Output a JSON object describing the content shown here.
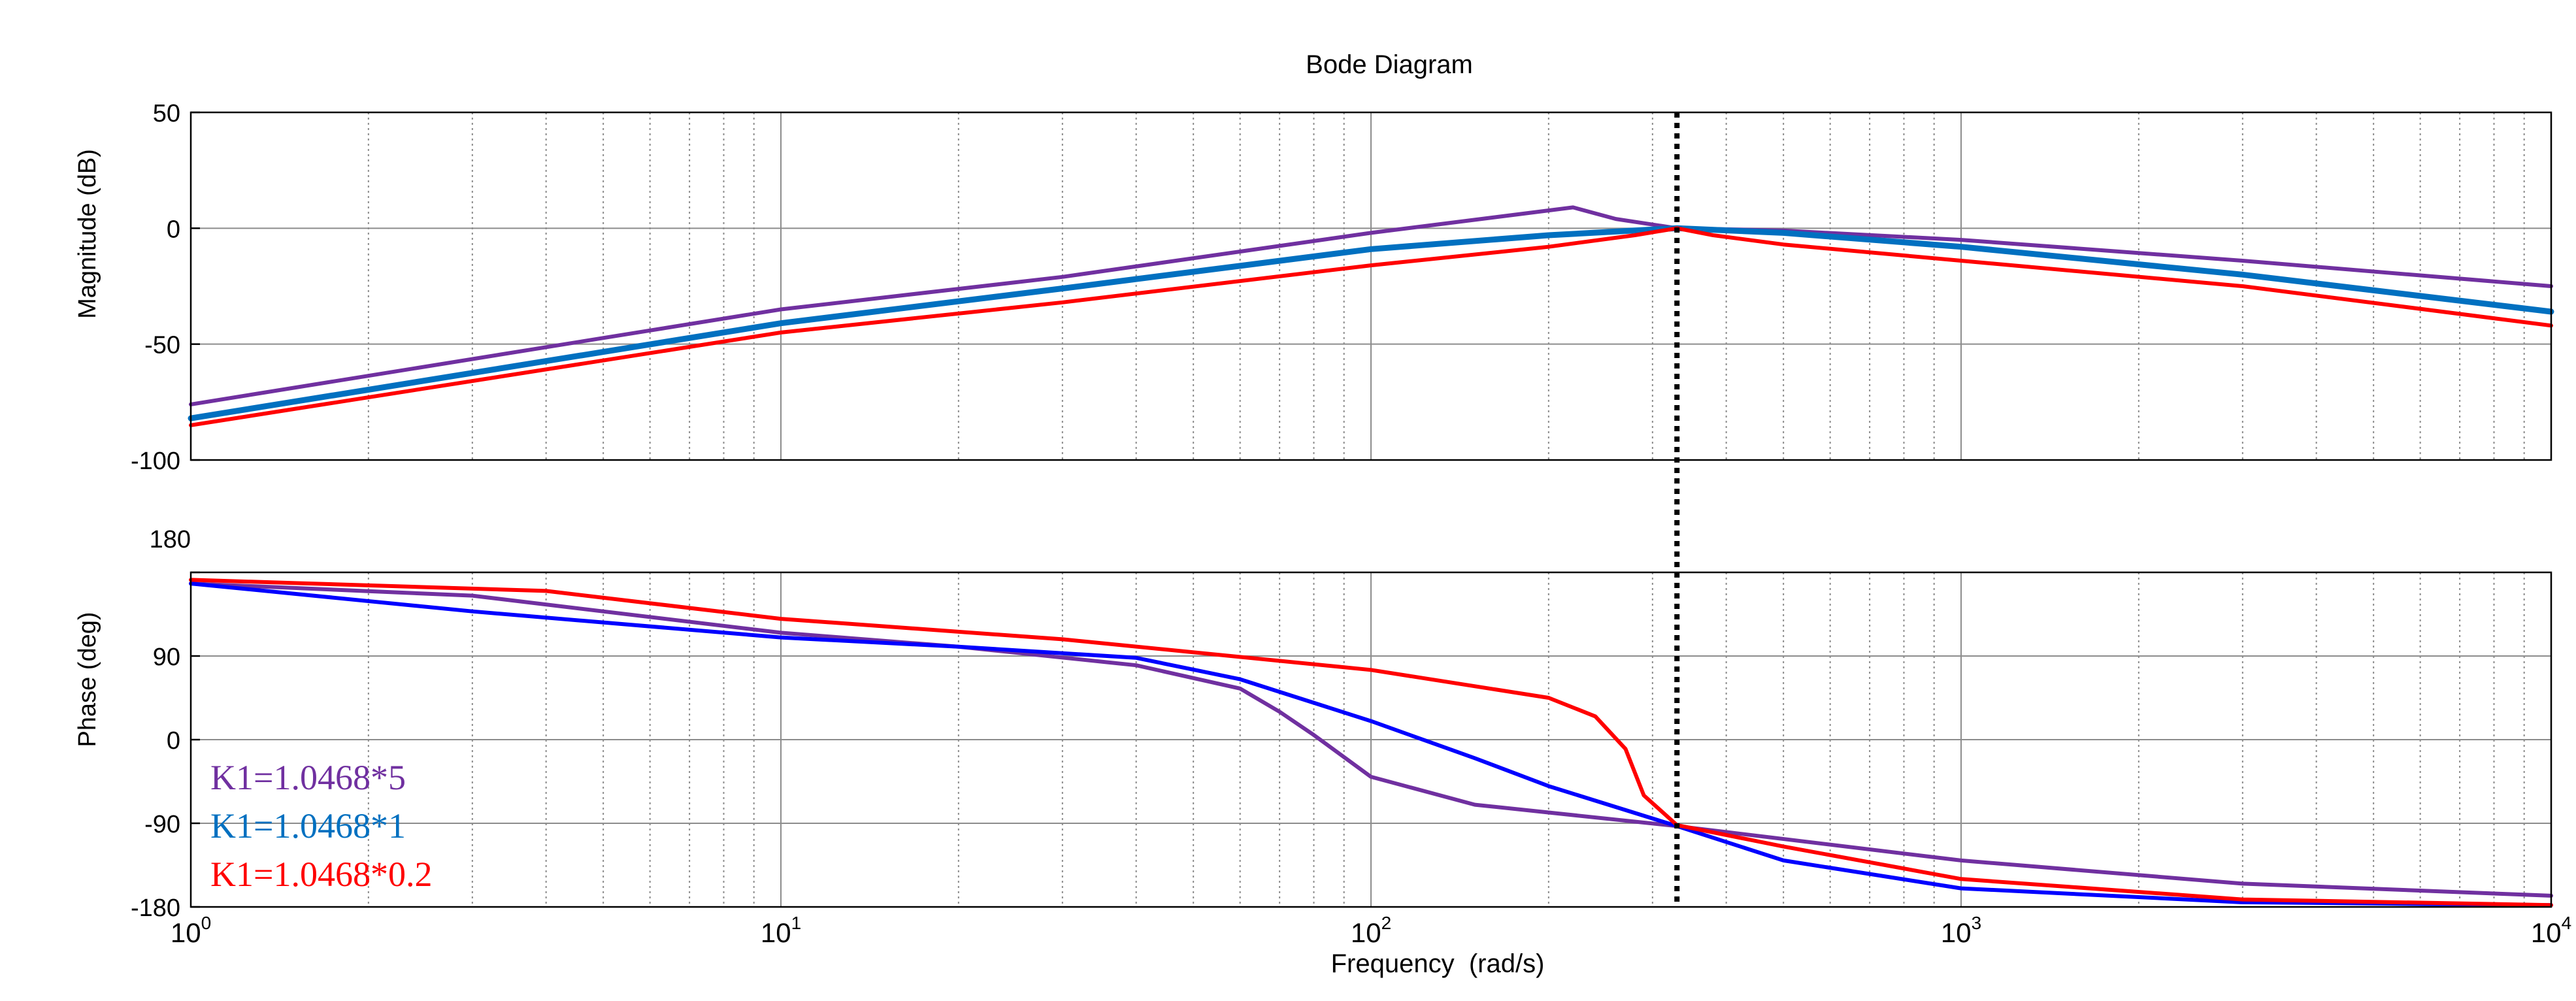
{
  "chart_data": {
    "type": "line",
    "title": "Bode Diagram",
    "xlabel": "Frequency  (rad/s)",
    "x_scale": "log",
    "xlim": [
      1,
      10000
    ],
    "x_ticks": [
      {
        "base": "10",
        "exp": "0"
      },
      {
        "base": "10",
        "exp": "1"
      },
      {
        "base": "10",
        "exp": "2"
      },
      {
        "base": "10",
        "exp": "3"
      },
      {
        "base": "10",
        "exp": "4"
      }
    ],
    "marker_line": {
      "x": 330,
      "style": "dotted",
      "color": "#000000"
    },
    "panels": [
      {
        "id": "magnitude",
        "ylabel": "Magnitude (dB)",
        "ylim": [
          -100,
          50
        ],
        "y_ticks": [
          "50",
          "0",
          "-50",
          "-100"
        ],
        "y_tick_values": [
          50,
          0,
          -50,
          -100
        ],
        "series": [
          {
            "name": "K1=1.0468*5",
            "color": "#7030A0",
            "points": [
              [
                1,
                -76
              ],
              [
                10,
                -35
              ],
              [
                30,
                -21
              ],
              [
                100,
                -2
              ],
              [
                220,
                9
              ],
              [
                260,
                4
              ],
              [
                330,
                0
              ],
              [
                500,
                -1
              ],
              [
                1000,
                -5
              ],
              [
                3000,
                -14
              ],
              [
                10000,
                -25
              ]
            ]
          },
          {
            "name": "K1=1.0468*1",
            "color": "#0070C0",
            "points": [
              [
                1,
                -82
              ],
              [
                10,
                -41
              ],
              [
                30,
                -26
              ],
              [
                100,
                -9
              ],
              [
                200,
                -3
              ],
              [
                330,
                0
              ],
              [
                500,
                -2
              ],
              [
                1000,
                -8
              ],
              [
                3000,
                -20
              ],
              [
                10000,
                -36
              ]
            ]
          },
          {
            "name": "K1=1.0468*0.2",
            "color": "#FF0000",
            "points": [
              [
                1,
                -85
              ],
              [
                10,
                -45
              ],
              [
                30,
                -32
              ],
              [
                100,
                -16
              ],
              [
                200,
                -8
              ],
              [
                280,
                -3
              ],
              [
                330,
                0
              ],
              [
                380,
                -3
              ],
              [
                500,
                -7
              ],
              [
                1000,
                -14
              ],
              [
                3000,
                -25
              ],
              [
                10000,
                -42
              ]
            ]
          }
        ]
      },
      {
        "id": "phase",
        "ylabel": "Phase (deg)",
        "ylim": [
          -180,
          180
        ],
        "y_ticks": [
          "180",
          "90",
          "0",
          "-90",
          "-180"
        ],
        "y_tick_values": [
          180,
          90,
          0,
          -90,
          -180
        ],
        "series": [
          {
            "name": "K1=1.0468*5",
            "color": "#7030A0",
            "points": [
              [
                1,
                168
              ],
              [
                3,
                155
              ],
              [
                10,
                115
              ],
              [
                20,
                100
              ],
              [
                40,
                80
              ],
              [
                60,
                55
              ],
              [
                70,
                30
              ],
              [
                80,
                5
              ],
              [
                100,
                -40
              ],
              [
                150,
                -70
              ],
              [
                330,
                -93
              ],
              [
                1000,
                -130
              ],
              [
                3000,
                -155
              ],
              [
                10000,
                -168
              ]
            ]
          },
          {
            "name": "K1=1.0468*1",
            "color": "#0000FF",
            "points": [
              [
                1,
                168
              ],
              [
                3,
                138
              ],
              [
                10,
                110
              ],
              [
                20,
                100
              ],
              [
                40,
                88
              ],
              [
                60,
                65
              ],
              [
                100,
                20
              ],
              [
                150,
                -20
              ],
              [
                200,
                -50
              ],
              [
                330,
                -93
              ],
              [
                500,
                -130
              ],
              [
                1000,
                -160
              ],
              [
                3000,
                -175
              ],
              [
                10000,
                -178
              ]
            ]
          },
          {
            "name": "K1=1.0468*0.2",
            "color": "#FF0000",
            "points": [
              [
                1,
                172
              ],
              [
                4,
                160
              ],
              [
                10,
                130
              ],
              [
                30,
                108
              ],
              [
                100,
                75
              ],
              [
                200,
                45
              ],
              [
                240,
                25
              ],
              [
                270,
                -10
              ],
              [
                290,
                -60
              ],
              [
                330,
                -92
              ],
              [
                500,
                -115
              ],
              [
                1000,
                -150
              ],
              [
                3000,
                -172
              ],
              [
                10000,
                -178
              ]
            ]
          }
        ]
      }
    ],
    "legend": {
      "placement": "lower-left of phase panel",
      "entries": [
        {
          "label": "K1=1.0468*5",
          "color": "#7030A0"
        },
        {
          "label": "K1=1.0468*1",
          "color": "#0070C0"
        },
        {
          "label": "K1=1.0468*0.2",
          "color": "#FF0000"
        }
      ]
    }
  }
}
